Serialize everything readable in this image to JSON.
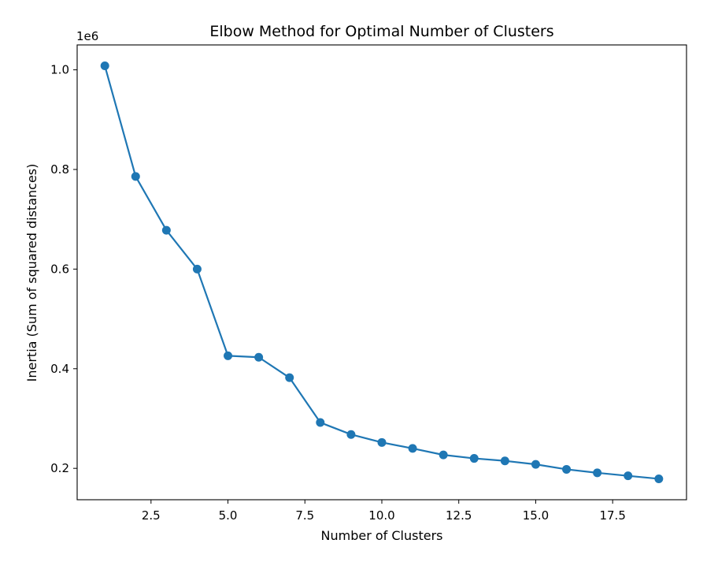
{
  "chart_data": {
    "type": "line",
    "title": "Elbow Method for Optimal Number of Clusters",
    "xlabel": "Number of Clusters",
    "ylabel": "Inertia (Sum of squared distances)",
    "y_offset_label": "1e6",
    "x_ticks": [
      {
        "value": 2.5,
        "label": "2.5"
      },
      {
        "value": 5.0,
        "label": "5.0"
      },
      {
        "value": 7.5,
        "label": "7.5"
      },
      {
        "value": 10.0,
        "label": "10.0"
      },
      {
        "value": 12.5,
        "label": "12.5"
      },
      {
        "value": 15.0,
        "label": "15.0"
      },
      {
        "value": 17.5,
        "label": "17.5"
      }
    ],
    "y_ticks": [
      {
        "value": 200000,
        "label": "0.2"
      },
      {
        "value": 400000,
        "label": "0.4"
      },
      {
        "value": 600000,
        "label": "0.6"
      },
      {
        "value": 800000,
        "label": "0.8"
      },
      {
        "value": 1000000,
        "label": "1.0"
      }
    ],
    "xlim": [
      0.1,
      19.9
    ],
    "ylim": [
      137000,
      1050000
    ],
    "grid": false,
    "legend": "none",
    "series": [
      {
        "color": "#1f77b4",
        "marker": "circle",
        "x": [
          1,
          2,
          3,
          4,
          5,
          6,
          7,
          8,
          9,
          10,
          11,
          12,
          13,
          14,
          15,
          16,
          17,
          18,
          19
        ],
        "y": [
          1008000,
          786000,
          678000,
          600000,
          426000,
          423000,
          382000,
          292000,
          268000,
          252000,
          240000,
          227000,
          220000,
          215000,
          208000,
          198000,
          191000,
          185000,
          179000
        ]
      }
    ]
  }
}
